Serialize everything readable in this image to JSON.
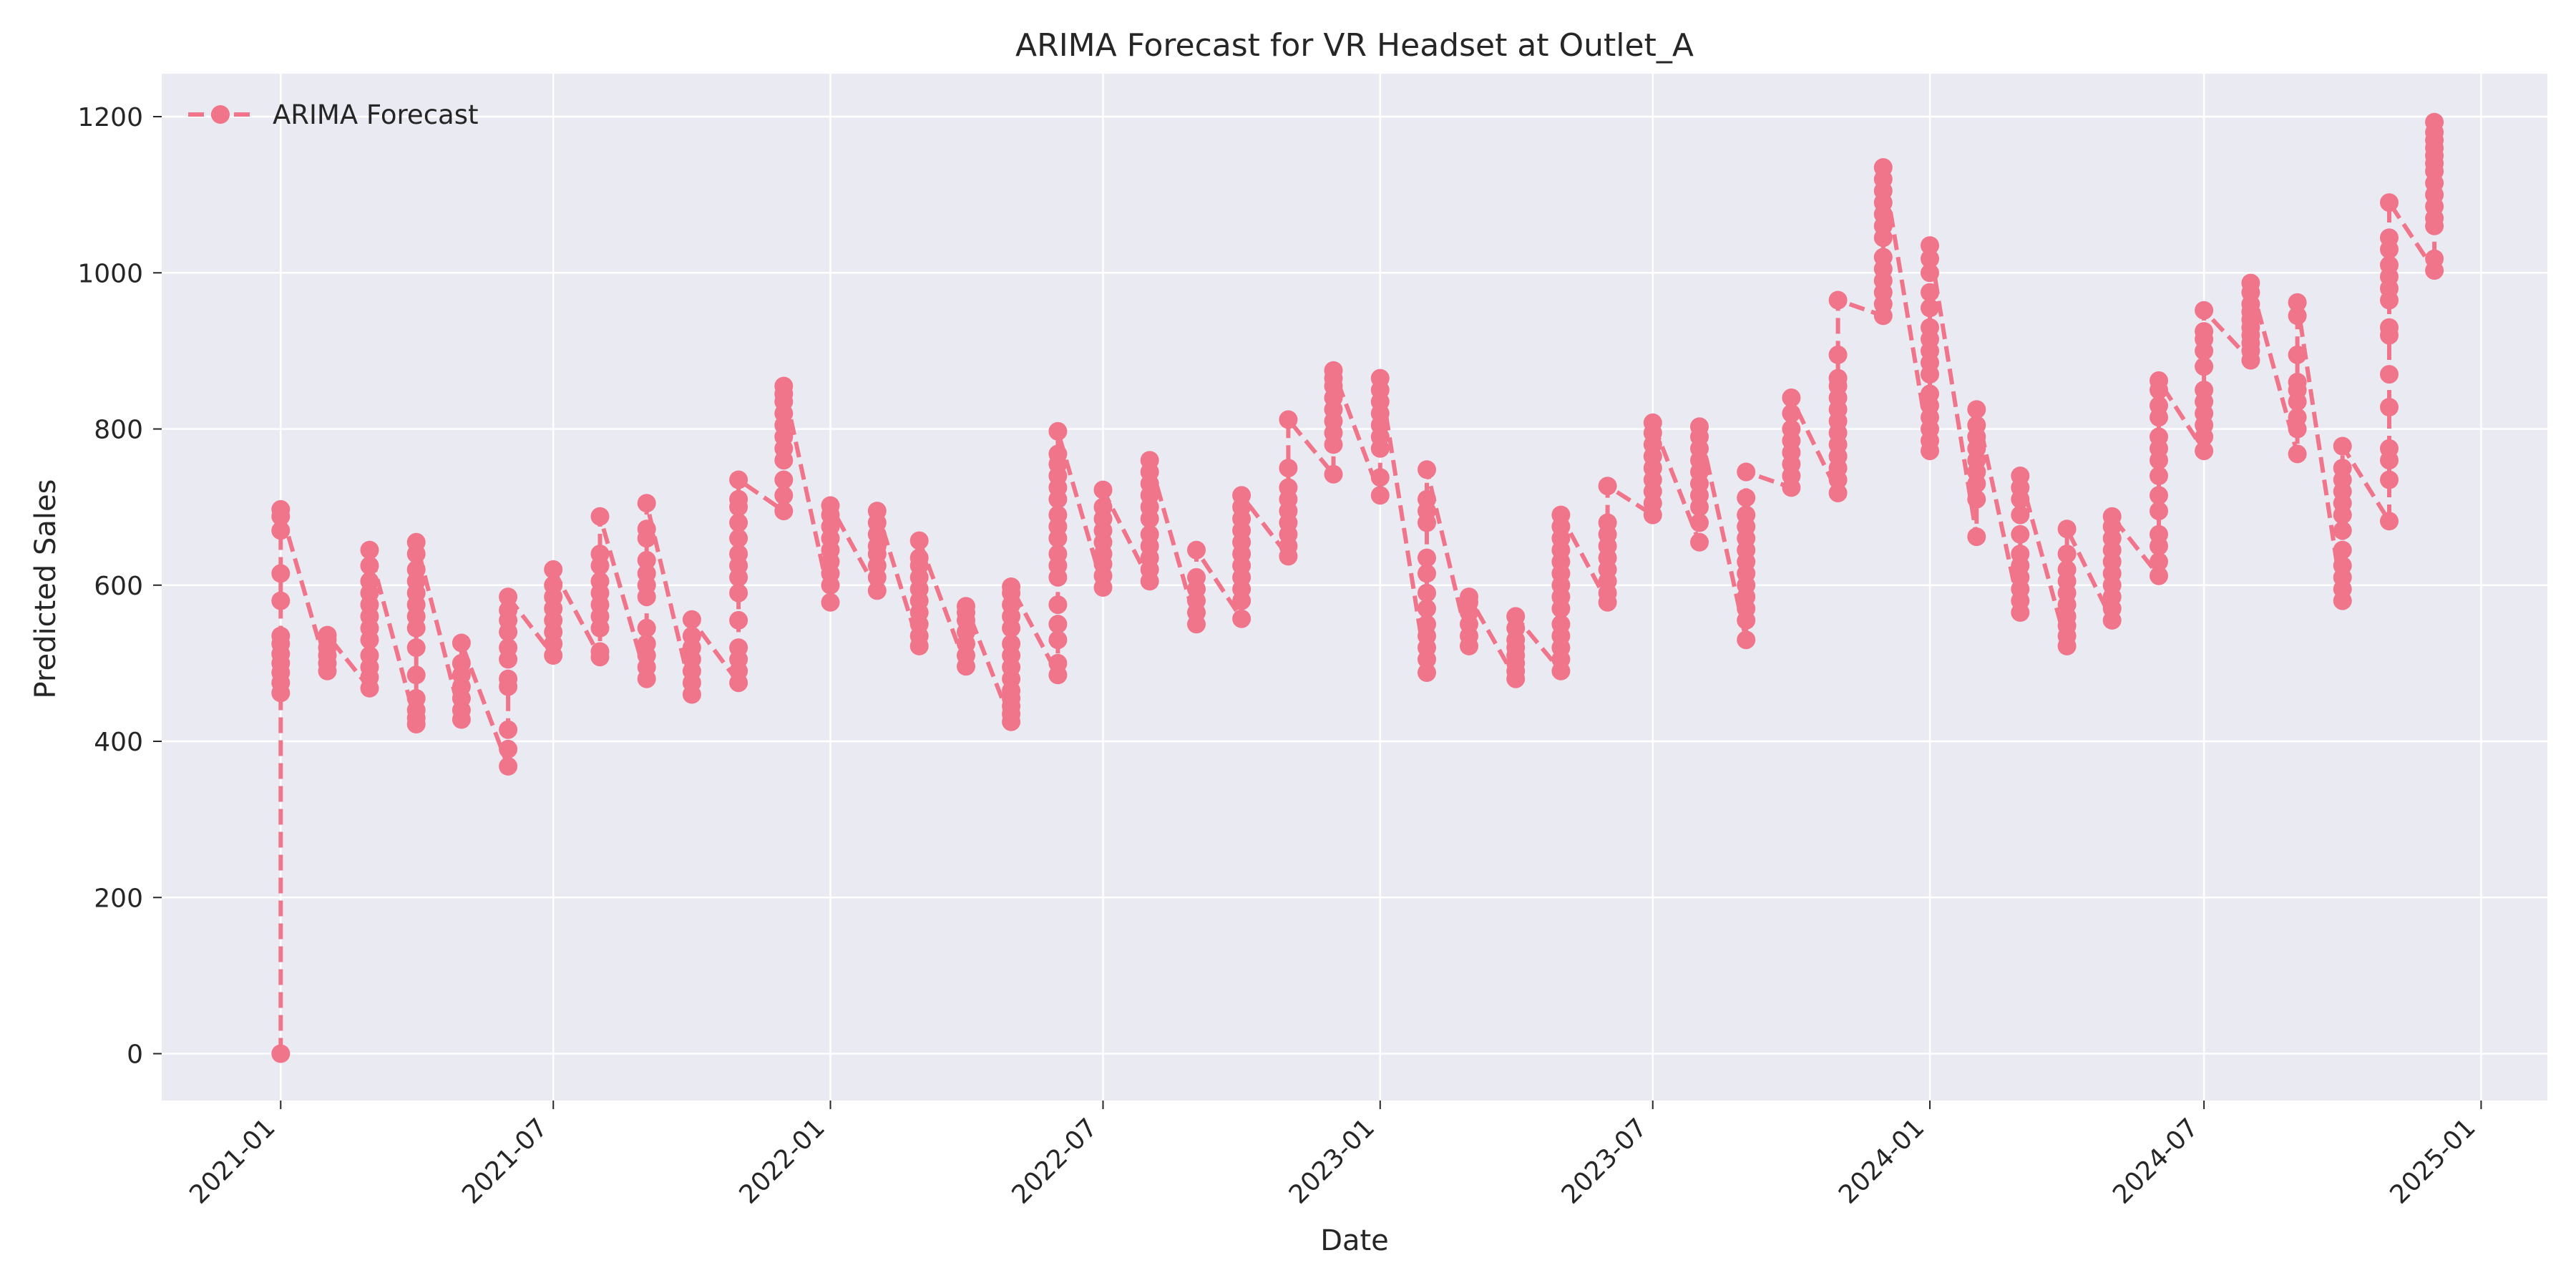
{
  "chart_data": {
    "type": "line",
    "title": "ARIMA Forecast for VR Headset at Outlet_A",
    "xlabel": "Date",
    "ylabel": "Predicted Sales",
    "x_range": [
      "2020-10-14",
      "2025-02-14"
    ],
    "ylim": [
      -60,
      1255
    ],
    "x_ticks": [
      "2021-01",
      "2021-07",
      "2022-01",
      "2022-07",
      "2023-01",
      "2023-07",
      "2024-01",
      "2024-07",
      "2025-01"
    ],
    "y_ticks": [
      0,
      200,
      400,
      600,
      800,
      1000,
      1200
    ],
    "grid": true,
    "legend_position": "top-left",
    "background_color": "#eaeaf2",
    "grid_color": "#ffffff",
    "series": [
      {
        "name": "ARIMA Forecast",
        "color": "#f0758a",
        "line_style": "dashed",
        "marker": "circle",
        "points": [
          {
            "date": "2021-01-01",
            "values": [
              0,
              462,
              475,
              488,
              500,
              512,
              525,
              535,
              580,
              615,
              670,
              688,
              697
            ]
          },
          {
            "date": "2021-02-01",
            "values": [
              490,
              500,
              510,
              520,
              530,
              536
            ]
          },
          {
            "date": "2021-03-01",
            "values": [
              468,
              482,
              495,
              510,
              530,
              545,
              560,
              575,
              590,
              605,
              625,
              645
            ]
          },
          {
            "date": "2021-04-01",
            "values": [
              422,
              430,
              440,
              455,
              485,
              520,
              545,
              560,
              575,
              590,
              605,
              620,
              640,
              655
            ]
          },
          {
            "date": "2021-05-01",
            "values": [
              428,
              440,
              455,
              470,
              485,
              500,
              526
            ]
          },
          {
            "date": "2021-06-01",
            "values": [
              368,
              390,
              415,
              470,
              480,
              505,
              520,
              540,
              555,
              568,
              585
            ]
          },
          {
            "date": "2021-07-01",
            "values": [
              510,
              525,
              540,
              555,
              570,
              585,
              600,
              620
            ]
          },
          {
            "date": "2021-08-01",
            "values": [
              508,
              515,
              545,
              560,
              575,
              590,
              605,
              625,
              640,
              688
            ]
          },
          {
            "date": "2021-09-01",
            "values": [
              480,
              495,
              510,
              525,
              545,
              585,
              600,
              615,
              632,
              660,
              672,
              705
            ]
          },
          {
            "date": "2021-10-01",
            "values": [
              460,
              475,
              490,
              505,
              520,
              535,
              556
            ]
          },
          {
            "date": "2021-11-01",
            "values": [
              475,
              490,
              505,
              520,
              555,
              590,
              610,
              625,
              640,
              660,
              680,
              700,
              710,
              735
            ]
          },
          {
            "date": "2021-12-01",
            "values": [
              695,
              715,
              735,
              760,
              775,
              790,
              805,
              820,
              835,
              845,
              855
            ]
          },
          {
            "date": "2022-01-01",
            "values": [
              578,
              600,
              615,
              630,
              645,
              660,
              675,
              690,
              702
            ]
          },
          {
            "date": "2022-02-01",
            "values": [
              593,
              610,
              625,
              640,
              650,
              665,
              680,
              695
            ]
          },
          {
            "date": "2022-03-01",
            "values": [
              522,
              535,
              550,
              565,
              580,
              595,
              610,
              625,
              635,
              657
            ]
          },
          {
            "date": "2022-04-01",
            "values": [
              496,
              510,
              525,
              540,
              555,
              565,
              573
            ]
          },
          {
            "date": "2022-05-01",
            "values": [
              425,
              435,
              445,
              455,
              465,
              480,
              495,
              510,
              525,
              545,
              560,
              575,
              590,
              598
            ]
          },
          {
            "date": "2022-06-01",
            "values": [
              485,
              500,
              530,
              550,
              575,
              610,
              625,
              640,
              660,
              675,
              690,
              710,
              725,
              740,
              755,
              768,
              797
            ]
          },
          {
            "date": "2022-07-01",
            "values": [
              597,
              612,
              627,
              640,
              655,
              670,
              685,
              700,
              722
            ]
          },
          {
            "date": "2022-08-01",
            "values": [
              605,
              620,
              635,
              650,
              665,
              685,
              700,
              715,
              730,
              745,
              760
            ]
          },
          {
            "date": "2022-09-01",
            "values": [
              550,
              565,
              580,
              595,
              610,
              645
            ]
          },
          {
            "date": "2022-10-01",
            "values": [
              557,
              580,
              595,
              610,
              625,
              640,
              655,
              670,
              685,
              700,
              715
            ]
          },
          {
            "date": "2022-11-01",
            "values": [
              637,
              650,
              665,
              680,
              695,
              710,
              725,
              750,
              812
            ]
          },
          {
            "date": "2022-12-01",
            "values": [
              742,
              780,
              795,
              810,
              825,
              840,
              855,
              865,
              875
            ]
          },
          {
            "date": "2023-01-01",
            "values": [
              715,
              738,
              775,
              790,
              805,
              820,
              835,
              850,
              865
            ]
          },
          {
            "date": "2023-02-01",
            "values": [
              488,
              505,
              520,
              535,
              550,
              570,
              590,
              615,
              635,
              680,
              695,
              710,
              748
            ]
          },
          {
            "date": "2023-03-01",
            "values": [
              522,
              535,
              550,
              565,
              578,
              585
            ]
          },
          {
            "date": "2023-04-01",
            "values": [
              480,
              490,
              500,
              510,
              520,
              530,
              545,
              560
            ]
          },
          {
            "date": "2023-05-01",
            "values": [
              490,
              505,
              520,
              535,
              550,
              570,
              585,
              600,
              615,
              630,
              645,
              660,
              675,
              690
            ]
          },
          {
            "date": "2023-06-01",
            "values": [
              578,
              590,
              605,
              620,
              635,
              650,
              665,
              680,
              727
            ]
          },
          {
            "date": "2023-07-01",
            "values": [
              690,
              705,
              720,
              735,
              750,
              765,
              780,
              795,
              808
            ]
          },
          {
            "date": "2023-08-01",
            "values": [
              655,
              680,
              700,
              715,
              730,
              745,
              760,
              775,
              790,
              803
            ]
          },
          {
            "date": "2023-09-01",
            "values": [
              530,
              555,
              570,
              585,
              600,
              615,
              630,
              645,
              660,
              675,
              690,
              712,
              745
            ]
          },
          {
            "date": "2023-10-01",
            "values": [
              725,
              740,
              755,
              770,
              785,
              800,
              820,
              840
            ]
          },
          {
            "date": "2023-11-01",
            "values": [
              718,
              735,
              750,
              765,
              780,
              795,
              810,
              825,
              840,
              855,
              865,
              895,
              965
            ]
          },
          {
            "date": "2023-12-01",
            "values": [
              945,
              960,
              975,
              990,
              1005,
              1020,
              1045,
              1060,
              1075,
              1090,
              1105,
              1120,
              1135
            ]
          },
          {
            "date": "2024-01-01",
            "values": [
              772,
              785,
              800,
              815,
              830,
              845,
              870,
              885,
              900,
              915,
              930,
              955,
              975,
              1000,
              1018,
              1035
            ]
          },
          {
            "date": "2024-02-01",
            "values": [
              662,
              710,
              730,
              745,
              760,
              775,
              790,
              805,
              825
            ]
          },
          {
            "date": "2024-03-01",
            "values": [
              565,
              580,
              595,
              610,
              625,
              640,
              665,
              690,
              710,
              725,
              740
            ]
          },
          {
            "date": "2024-04-01",
            "values": [
              522,
              535,
              548,
              560,
              575,
              590,
              605,
              620,
              640,
              672
            ]
          },
          {
            "date": "2024-05-01",
            "values": [
              555,
              570,
              585,
              600,
              615,
              630,
              645,
              660,
              675,
              688
            ]
          },
          {
            "date": "2024-06-01",
            "values": [
              612,
              630,
              650,
              665,
              695,
              715,
              740,
              760,
              775,
              790,
              815,
              830,
              850,
              862
            ]
          },
          {
            "date": "2024-07-01",
            "values": [
              772,
              790,
              805,
              820,
              835,
              850,
              880,
              900,
              915,
              925,
              952
            ]
          },
          {
            "date": "2024-08-01",
            "values": [
              888,
              900,
              910,
              920,
              930,
              940,
              950,
              960,
              975,
              987
            ]
          },
          {
            "date": "2024-09-01",
            "values": [
              768,
              800,
              815,
              835,
              850,
              860,
              895,
              945,
              962
            ]
          },
          {
            "date": "2024-10-01",
            "values": [
              580,
              595,
              610,
              625,
              645,
              670,
              690,
              705,
              720,
              735,
              750,
              778
            ]
          },
          {
            "date": "2024-11-01",
            "values": [
              682,
              735,
              760,
              775,
              828,
              870,
              920,
              930,
              965,
              980,
              995,
              1010,
              1030,
              1045,
              1090
            ]
          },
          {
            "date": "2024-12-01",
            "values": [
              1003,
              1018,
              1060,
              1070,
              1085,
              1100,
              1115,
              1130,
              1140,
              1150,
              1160,
              1170,
              1180,
              1193
            ]
          }
        ]
      }
    ]
  }
}
